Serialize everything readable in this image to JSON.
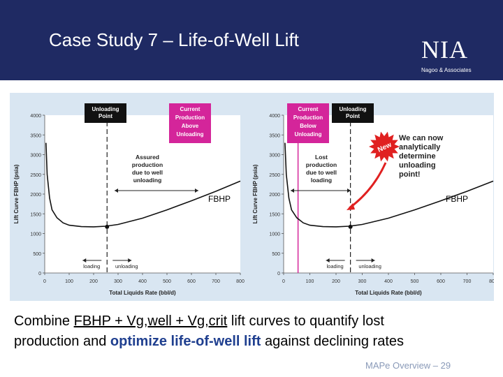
{
  "header": {
    "title": "Case Study 7 – Life-of-Well Lift",
    "logo": "NIA",
    "logo_sub": "Nagoo & Associates"
  },
  "chart_data": [
    {
      "type": "line",
      "title": "",
      "xlabel": "Total Liquids Rate (bbl/d)",
      "ylabel": "Lift Curve FBHP (psia)",
      "xlim": [
        0,
        800
      ],
      "ylim": [
        0,
        4000
      ],
      "x_ticks": [
        "0",
        "100",
        "200",
        "300",
        "400",
        "500",
        "600",
        "700",
        "800"
      ],
      "y_ticks": [
        "0",
        "500",
        "1000",
        "1500",
        "2000",
        "2500",
        "3000",
        "3500",
        "4000"
      ],
      "series": [
        {
          "x": [
            5,
            10,
            20,
            30,
            50,
            75,
            100,
            150,
            200,
            250,
            300,
            400,
            500,
            600,
            700,
            800
          ],
          "y": [
            3300,
            2500,
            1900,
            1600,
            1400,
            1270,
            1210,
            1175,
            1170,
            1185,
            1230,
            1390,
            1600,
            1830,
            2070,
            2330
          ]
        }
      ],
      "marked_point": {
        "x": 255,
        "y": 1170
      },
      "vertical_line_x": 255,
      "annotations": {
        "unloading_point": "Unloading Point",
        "current_production": "Current Production Above Unloading",
        "assured": "Assured production due to well unloading",
        "fbhp": "FBHP",
        "loading": "loading",
        "unloading": "unloading"
      }
    },
    {
      "type": "line",
      "title": "",
      "xlabel": "Total Liquids Rate (bbl/d)",
      "ylabel": "Lift Curve FBHP (psia)",
      "xlim": [
        0,
        800
      ],
      "ylim": [
        0,
        4000
      ],
      "x_ticks": [
        "0",
        "100",
        "200",
        "300",
        "400",
        "500",
        "600",
        "700",
        "800"
      ],
      "y_ticks": [
        "0",
        "500",
        "1000",
        "1500",
        "2000",
        "2500",
        "3000",
        "3500",
        "4000"
      ],
      "series": [
        {
          "x": [
            5,
            10,
            20,
            30,
            50,
            75,
            100,
            150,
            200,
            250,
            300,
            400,
            500,
            600,
            700,
            800
          ],
          "y": [
            3300,
            2500,
            1900,
            1600,
            1400,
            1270,
            1210,
            1175,
            1170,
            1185,
            1230,
            1390,
            1600,
            1830,
            2070,
            2330
          ]
        }
      ],
      "marked_point": {
        "x": 255,
        "y": 1170
      },
      "vertical_line_x": 55,
      "annotations": {
        "current_production": "Current Production Below Unloading",
        "unloading_point": "Unloading Point",
        "lost": "Lost production due to well loading",
        "fbhp": "FBHP",
        "loading": "loading",
        "unloading": "unloading",
        "new_badge": "New",
        "callout": "We can now analytically determine unloading point!"
      }
    }
  ],
  "body": {
    "line1_a": "Combine ",
    "line1_u": "FBHP + Vg,well + Vg,crit",
    "line1_b": " lift curves to quantify lost",
    "line2_a": "production and ",
    "line2_blue": "optimize life-of-well lift",
    "line2_b": " against declining rates"
  },
  "footer": "MAPe Overview – 29",
  "colors": {
    "header_bg": "#1f2a63",
    "panel_bg": "#d9e6f2",
    "magenta": "#d4259a",
    "black_box": "#111111",
    "red": "#e02020"
  }
}
